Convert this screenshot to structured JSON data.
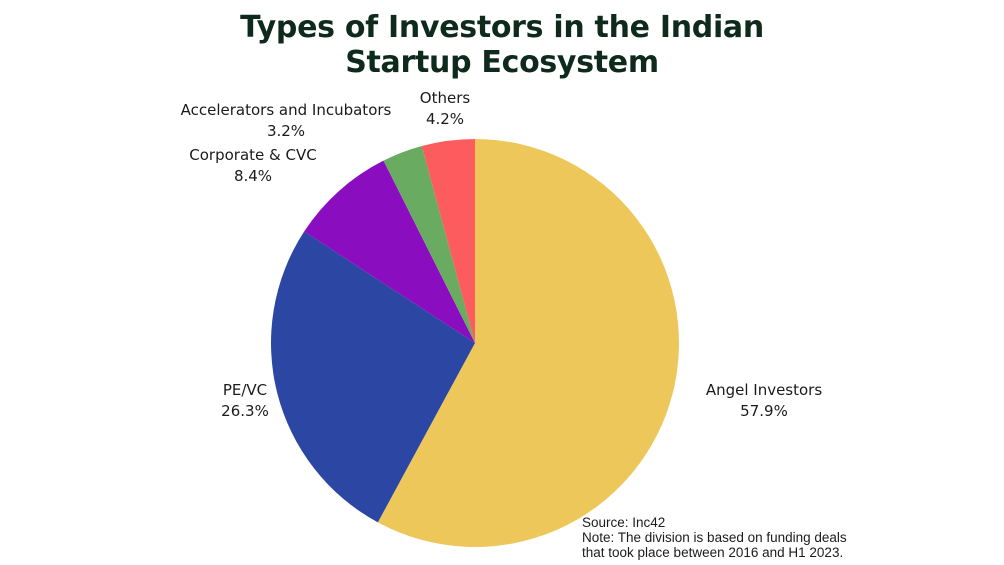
{
  "chart_data": {
    "type": "pie",
    "title_lines": [
      "Types of Investors in the Indian",
      "Startup Ecosystem"
    ],
    "slices": [
      {
        "label": "Angel Investors",
        "value": 57.9,
        "value_label": "57.9%",
        "color": "#eec75a"
      },
      {
        "label": "PE/VC",
        "value": 26.3,
        "value_label": "26.3%",
        "color": "#2b47a3"
      },
      {
        "label": "Corporate & CVC",
        "value": 8.4,
        "value_label": "8.4%",
        "color": "#8a0dbf"
      },
      {
        "label": "Accelerators and Incubators",
        "value": 3.2,
        "value_label": "3.2%",
        "color": "#69ac61"
      },
      {
        "label": "Others",
        "value": 4.2,
        "value_label": "4.2%",
        "color": "#fc5c5e"
      }
    ],
    "start": "12 o'clock",
    "direction": "clockwise"
  },
  "source": {
    "line1": "Source: Inc42",
    "line2": "Note: The division is based on funding deals",
    "line3": "that took place between 2016 and H1 2023."
  }
}
